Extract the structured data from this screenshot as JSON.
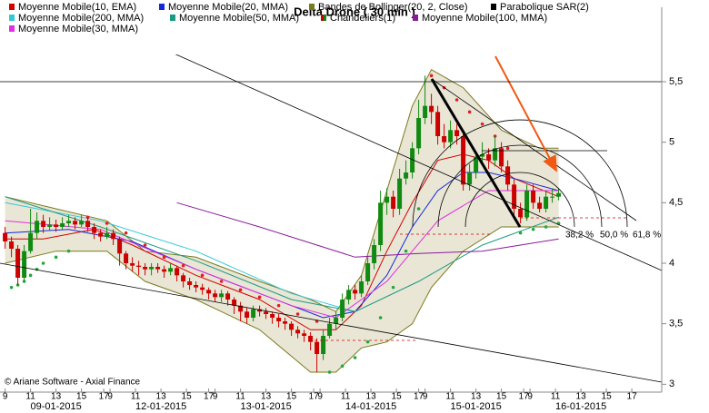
{
  "chart_data": {
    "type": "candlestick",
    "title": "Delta Drone  ( 30 min )",
    "footer": "© Ariane Software - Axial Finance",
    "annotations": [
      "38,2 %",
      "50,0 %",
      "61,8 %"
    ],
    "xlim": [
      -0.8,
      103.2
    ],
    "ylim": [
      2.95,
      6.1
    ],
    "yticks": [
      3,
      {
        "value": 3.5,
        "label": "3,5"
      },
      4,
      {
        "value": 4.5,
        "label": "4,5"
      },
      5,
      {
        "value": 5.5,
        "label": "5,5"
      }
    ],
    "horizontal_lines": [
      5.5
    ],
    "xticks": [
      {
        "value": 0,
        "label": "9"
      },
      {
        "value": 4,
        "label": "11"
      },
      {
        "value": 8,
        "label": "13"
      },
      {
        "value": 12,
        "label": "15"
      },
      {
        "value": 15.5,
        "label": "17"
      },
      {
        "value": 16.5,
        "label": "9"
      },
      {
        "value": 20.5,
        "label": "11"
      },
      {
        "value": 24.5,
        "label": "13"
      },
      {
        "value": 28.5,
        "label": "15"
      },
      {
        "value": 32,
        "label": "17"
      },
      {
        "value": 33,
        "label": "9"
      },
      {
        "value": 37,
        "label": "11"
      },
      {
        "value": 41,
        "label": "13"
      },
      {
        "value": 45,
        "label": "15"
      },
      {
        "value": 48.5,
        "label": "17"
      },
      {
        "value": 49.5,
        "label": "9"
      },
      {
        "value": 53.5,
        "label": "11"
      },
      {
        "value": 57.5,
        "label": "13"
      },
      {
        "value": 61.5,
        "label": "15"
      },
      {
        "value": 65,
        "label": "17"
      },
      {
        "value": 66,
        "label": "9"
      },
      {
        "value": 70,
        "label": "11"
      },
      {
        "value": 74,
        "label": "13"
      },
      {
        "value": 78,
        "label": "15"
      },
      {
        "value": 81.5,
        "label": "17"
      },
      {
        "value": 82.5,
        "label": "9"
      },
      {
        "value": 86.5,
        "label": "11"
      },
      {
        "value": 90.5,
        "label": "13"
      },
      {
        "value": 94.5,
        "label": "15"
      },
      {
        "value": 98.5,
        "label": "17"
      }
    ],
    "date_labels": [
      {
        "value": 8,
        "label": "09-01-2015"
      },
      {
        "value": 24.5,
        "label": "12-01-2015"
      },
      {
        "value": 41,
        "label": "13-01-2015"
      },
      {
        "value": 57.5,
        "label": "14-01-2015"
      },
      {
        "value": 74,
        "label": "15-01-2015"
      },
      {
        "value": 90.5,
        "label": "16-01-2015"
      }
    ],
    "series": [
      {
        "name": "Moyenne Mobile(10, EMA)",
        "kind": "line",
        "color": "#d40000",
        "x": [
          0,
          6,
          14,
          20,
          30,
          40,
          48,
          52,
          56,
          60,
          64,
          68,
          72,
          76,
          80,
          87
        ],
        "values": [
          4.2,
          4.2,
          4.28,
          4.15,
          3.9,
          3.7,
          3.45,
          3.45,
          3.65,
          4.1,
          4.5,
          4.85,
          4.9,
          4.85,
          4.7,
          4.55
        ]
      },
      {
        "name": "Moyenne Mobile(20, MMA)",
        "kind": "line",
        "color": "#1428d8",
        "x": [
          0,
          10,
          20,
          30,
          40,
          50,
          55,
          60,
          64,
          68,
          72,
          76,
          80,
          87
        ],
        "values": [
          4.25,
          4.28,
          4.18,
          3.95,
          3.75,
          3.55,
          3.6,
          3.9,
          4.3,
          4.6,
          4.75,
          4.75,
          4.7,
          4.6
        ]
      },
      {
        "name": "Bandes de Bollinger(20, 2, Close)",
        "kind": "band",
        "color": "#7a7a1e",
        "x": [
          0,
          8,
          16,
          22,
          30,
          40,
          48,
          52,
          56,
          60,
          64,
          67,
          72,
          78,
          84,
          87
        ],
        "upper": [
          4.55,
          4.45,
          4.35,
          4.1,
          4.05,
          3.85,
          3.7,
          3.6,
          3.9,
          4.6,
          5.3,
          5.6,
          5.45,
          5.1,
          4.95,
          4.95
        ],
        "lower": [
          4.0,
          4.1,
          4.1,
          3.85,
          3.7,
          3.45,
          3.1,
          3.1,
          3.3,
          3.35,
          3.5,
          3.8,
          4.1,
          4.3,
          4.3,
          4.3
        ]
      },
      {
        "name": "Parabolique SAR(2)",
        "kind": "dots",
        "color": "#000000",
        "up_color": "#22a83a",
        "down_color": "#e02020",
        "x": [
          1,
          2,
          3,
          4,
          5,
          6,
          8,
          10,
          13,
          16,
          19,
          22,
          25,
          28,
          31,
          34,
          37,
          40,
          43,
          46,
          49,
          51,
          53,
          55,
          57,
          59,
          61,
          63,
          65,
          67,
          69,
          71,
          73,
          75,
          77,
          79,
          81,
          83,
          85,
          87
        ],
        "values": [
          3.8,
          3.82,
          3.85,
          3.9,
          3.95,
          4.0,
          4.05,
          4.1,
          4.38,
          4.33,
          4.25,
          4.15,
          4.05,
          3.98,
          3.9,
          3.85,
          3.78,
          3.72,
          3.65,
          3.58,
          3.52,
          3.1,
          3.15,
          3.22,
          3.35,
          3.55,
          3.8,
          4.1,
          4.45,
          5.55,
          5.45,
          5.35,
          5.25,
          5.15,
          5.05,
          4.95,
          4.25,
          4.28,
          4.3,
          4.33
        ]
      },
      {
        "name": "Moyenne Mobile(200, MMA)",
        "kind": "line",
        "color": "#33c8d8",
        "x": [
          0,
          15,
          30,
          45,
          55
        ],
        "values": [
          4.5,
          4.35,
          4.1,
          3.75,
          3.6
        ]
      },
      {
        "name": "Moyenne Mobile(50, MMA)",
        "kind": "line",
        "color": "#1a9a80",
        "x": [
          0,
          15,
          30,
          45,
          55,
          65,
          75,
          87
        ],
        "values": [
          4.55,
          4.3,
          4.02,
          3.7,
          3.6,
          3.85,
          4.15,
          4.38
        ]
      },
      {
        "name": "Chandeliers(1)",
        "kind": "candles",
        "color": "#cc0000",
        "up_color": "#118a11",
        "down_color": "#cc0000",
        "open": [
          4.25,
          4.18,
          4.12,
          3.88,
          4.1,
          4.25,
          4.35,
          4.3,
          4.32,
          4.3,
          4.33,
          4.35,
          4.32,
          4.35,
          4.3,
          4.25,
          4.22,
          4.25,
          4.2,
          4.08,
          4.0,
          3.98,
          3.97,
          3.95,
          3.97,
          3.95,
          3.93,
          3.96,
          3.9,
          3.85,
          3.82,
          3.8,
          3.78,
          3.75,
          3.72,
          3.75,
          3.7,
          3.65,
          3.6,
          3.55,
          3.62,
          3.6,
          3.58,
          3.55,
          3.52,
          3.5,
          3.45,
          3.42,
          3.4,
          3.35,
          3.25,
          3.4,
          3.5,
          3.55,
          3.7,
          3.78,
          3.75,
          3.85,
          4.0,
          4.15,
          4.5,
          4.55,
          4.45,
          4.7,
          4.75,
          4.95,
          5.2,
          5.3,
          5.25,
          5.05,
          5.0,
          5.1,
          5.05,
          4.65,
          4.75,
          4.88,
          4.9,
          4.85,
          4.95,
          4.8,
          4.65,
          4.45,
          4.38,
          4.6,
          4.5,
          4.45,
          4.55,
          4.55
        ],
        "high": [
          4.3,
          4.22,
          4.15,
          4.15,
          4.45,
          4.42,
          4.4,
          4.38,
          4.36,
          4.38,
          4.4,
          4.38,
          4.4,
          4.38,
          4.33,
          4.28,
          4.3,
          4.28,
          4.22,
          4.1,
          4.05,
          4.02,
          4.0,
          4.0,
          4.0,
          3.98,
          4.0,
          3.98,
          3.92,
          3.88,
          3.85,
          3.83,
          3.8,
          3.78,
          3.78,
          3.77,
          3.72,
          3.68,
          3.63,
          3.65,
          3.65,
          3.63,
          3.6,
          3.58,
          3.55,
          3.52,
          3.48,
          3.45,
          3.43,
          3.38,
          3.45,
          3.55,
          3.6,
          3.75,
          3.82,
          3.82,
          3.9,
          4.05,
          4.2,
          4.6,
          4.62,
          4.6,
          4.78,
          4.85,
          5.0,
          5.35,
          5.55,
          5.4,
          5.3,
          5.15,
          5.18,
          5.15,
          5.08,
          4.82,
          4.92,
          5.0,
          4.95,
          5.05,
          5.0,
          4.85,
          4.7,
          4.5,
          4.65,
          4.65,
          4.55,
          4.6,
          4.62,
          4.62
        ],
        "low": [
          4.12,
          4.05,
          3.82,
          3.85,
          4.08,
          4.2,
          4.25,
          4.27,
          4.26,
          4.28,
          4.3,
          4.28,
          4.3,
          4.26,
          4.2,
          4.18,
          4.2,
          4.15,
          3.98,
          3.95,
          3.93,
          3.9,
          3.9,
          3.9,
          3.92,
          3.88,
          3.9,
          3.85,
          3.8,
          3.78,
          3.76,
          3.74,
          3.7,
          3.68,
          3.68,
          3.65,
          3.58,
          3.52,
          3.5,
          3.52,
          3.56,
          3.54,
          3.5,
          3.47,
          3.45,
          3.4,
          3.38,
          3.35,
          3.28,
          3.1,
          3.2,
          3.38,
          3.45,
          3.52,
          3.66,
          3.7,
          3.72,
          3.82,
          3.95,
          4.1,
          4.4,
          4.38,
          4.4,
          4.65,
          4.7,
          4.9,
          5.15,
          5.15,
          4.98,
          4.95,
          4.95,
          4.98,
          4.6,
          4.6,
          4.7,
          4.82,
          4.78,
          4.8,
          4.75,
          4.6,
          4.4,
          4.33,
          4.35,
          4.45,
          4.42,
          4.42,
          4.5,
          4.52
        ],
        "close": [
          4.18,
          4.12,
          3.88,
          4.1,
          4.25,
          4.35,
          4.3,
          4.32,
          4.3,
          4.33,
          4.35,
          4.32,
          4.35,
          4.3,
          4.25,
          4.22,
          4.25,
          4.2,
          4.08,
          4.0,
          3.98,
          3.97,
          3.95,
          3.97,
          3.95,
          3.93,
          3.96,
          3.9,
          3.85,
          3.82,
          3.8,
          3.78,
          3.75,
          3.72,
          3.75,
          3.7,
          3.65,
          3.6,
          3.55,
          3.62,
          3.6,
          3.58,
          3.55,
          3.52,
          3.5,
          3.45,
          3.42,
          3.4,
          3.35,
          3.25,
          3.4,
          3.5,
          3.55,
          3.7,
          3.78,
          3.75,
          3.85,
          4.0,
          4.15,
          4.5,
          4.55,
          4.45,
          4.7,
          4.75,
          4.95,
          5.2,
          5.3,
          5.25,
          5.05,
          5.0,
          5.1,
          5.05,
          4.65,
          4.75,
          4.88,
          4.9,
          4.85,
          4.95,
          4.8,
          4.65,
          4.45,
          4.38,
          4.6,
          4.5,
          4.45,
          4.55,
          4.55,
          4.58
        ]
      },
      {
        "name": "Moyenne Mobile(100, MMA)",
        "kind": "line",
        "color": "#8a1a9a",
        "x": [
          27,
          40,
          55,
          65,
          75,
          87
        ],
        "values": [
          4.5,
          4.3,
          4.05,
          4.08,
          4.1,
          4.2
        ]
      },
      {
        "name": "Moyenne Mobile(30, MMA)",
        "kind": "line",
        "color": "#e030e0",
        "x": [
          0,
          15,
          30,
          45,
          52,
          60,
          68,
          76,
          87
        ],
        "values": [
          4.35,
          4.28,
          3.95,
          3.65,
          3.55,
          3.85,
          4.35,
          4.6,
          4.6
        ]
      }
    ]
  }
}
